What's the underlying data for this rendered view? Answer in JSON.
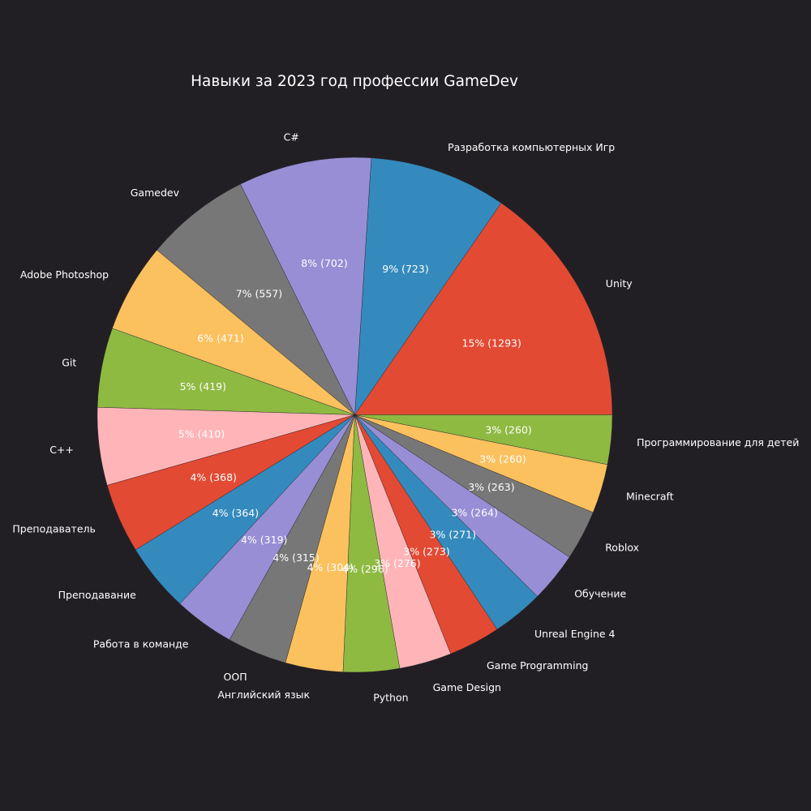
{
  "page": {
    "background": "#221f24",
    "text_color": "#ffffff"
  },
  "chart_data": {
    "type": "pie",
    "title": "Навыки за 2023 год профессии GameDev",
    "counterclockwise": true,
    "start_angle_deg": 0,
    "slices": [
      {
        "label": "Unity",
        "value": 1293,
        "pct_label": "15%  (1293)",
        "color": "#e24a33"
      },
      {
        "label": "Разработка компьютерных Игр",
        "value": 723,
        "pct_label": "9%  (723)",
        "color": "#348abd"
      },
      {
        "label": "C#",
        "value": 702,
        "pct_label": "8%  (702)",
        "color": "#988ed5"
      },
      {
        "label": "Gamedev",
        "value": 557,
        "pct_label": "7%  (557)",
        "color": "#777777"
      },
      {
        "label": "Adobe Photoshop",
        "value": 471,
        "pct_label": "6%  (471)",
        "color": "#fbc15e"
      },
      {
        "label": "Git",
        "value": 419,
        "pct_label": "5%  (419)",
        "color": "#8eba42"
      },
      {
        "label": "C++",
        "value": 410,
        "pct_label": "5%  (410)",
        "color": "#ffb5b8"
      },
      {
        "label": "Преподаватель",
        "value": 368,
        "pct_label": "4%  (368)",
        "color": "#e24a33"
      },
      {
        "label": "Преподавание",
        "value": 364,
        "pct_label": "4%  (364)",
        "color": "#348abd"
      },
      {
        "label": "Работа в команде",
        "value": 319,
        "pct_label": "4%  (319)",
        "color": "#988ed5"
      },
      {
        "label": "ООП",
        "value": 315,
        "pct_label": "4%  (315)",
        "color": "#777777"
      },
      {
        "label": "Английский язык",
        "value": 304,
        "pct_label": "4%  (304)",
        "color": "#fbc15e"
      },
      {
        "label": "Python",
        "value": 296,
        "pct_label": "4%  (296)",
        "color": "#8eba42"
      },
      {
        "label": "Game Design",
        "value": 276,
        "pct_label": "3%  (276)",
        "color": "#ffb5b8"
      },
      {
        "label": "Game Programming",
        "value": 273,
        "pct_label": "3%  (273)",
        "color": "#e24a33"
      },
      {
        "label": "Unreal Engine 4",
        "value": 271,
        "pct_label": "3%  (271)",
        "color": "#348abd"
      },
      {
        "label": "Обучение",
        "value": 264,
        "pct_label": "3%  (264)",
        "color": "#988ed5"
      },
      {
        "label": "Roblox",
        "value": 263,
        "pct_label": "3%  (263)",
        "color": "#777777"
      },
      {
        "label": "Minecraft",
        "value": 260,
        "pct_label": "3%  (260)",
        "color": "#fbc15e"
      },
      {
        "label": "Программирование для детей",
        "value": 260,
        "pct_label": "3%  (260)",
        "color": "#8eba42"
      }
    ]
  }
}
